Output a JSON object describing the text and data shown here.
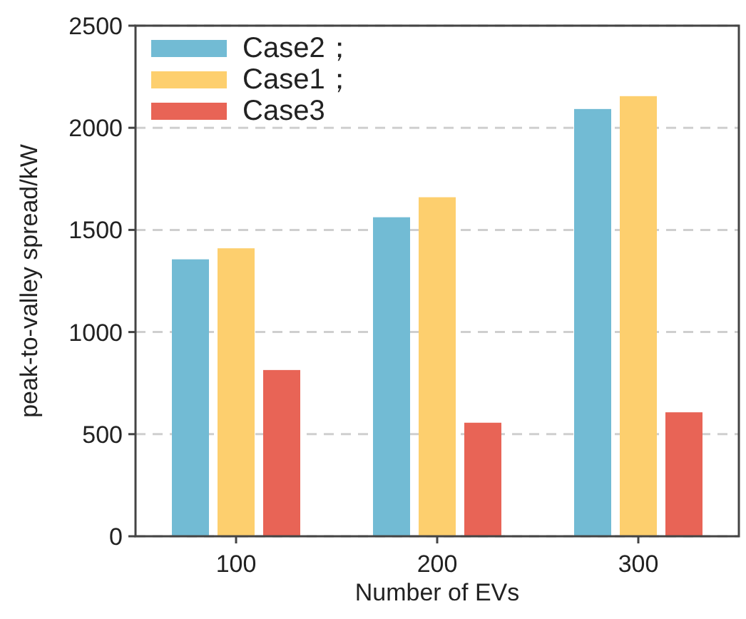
{
  "chart_data": {
    "type": "bar",
    "xlabel": "Number of EVs",
    "ylabel": "peak-to-valley spread/kW",
    "categories": [
      "100",
      "200",
      "300"
    ],
    "series": [
      {
        "name": "Case2；",
        "color": "#72bbd4",
        "values": [
          1356,
          1562,
          2092
        ]
      },
      {
        "name": "Case1；",
        "color": "#fdcf6e",
        "values": [
          1410,
          1660,
          2155
        ]
      },
      {
        "name": "Case3",
        "color": "#e86456",
        "values": [
          814,
          556,
          607
        ]
      }
    ],
    "ylim": [
      0,
      2500
    ],
    "yticks": [
      0,
      500,
      1000,
      1500,
      2000,
      2500
    ],
    "grid": "y",
    "legend": "top left"
  }
}
